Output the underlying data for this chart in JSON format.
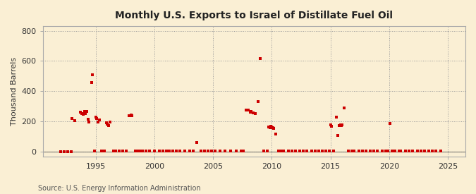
{
  "title": "Monthly U.S. Exports to Israel of Distillate Fuel Oil",
  "ylabel": "Thousand Barrels",
  "source": "Source: U.S. Energy Information Administration",
  "background_color": "#faefd4",
  "plot_background_color": "#faefd4",
  "marker_color": "#cc0000",
  "marker_size": 9,
  "xlim": [
    1990.5,
    2026.5
  ],
  "ylim": [
    -30,
    830
  ],
  "yticks": [
    0,
    200,
    400,
    600,
    800
  ],
  "xticks": [
    1995,
    2000,
    2005,
    2010,
    2015,
    2020,
    2025
  ],
  "data": [
    [
      1992.0,
      0
    ],
    [
      1992.3,
      0
    ],
    [
      1992.6,
      0
    ],
    [
      1992.9,
      0
    ],
    [
      1993.0,
      220
    ],
    [
      1993.2,
      205
    ],
    [
      1993.7,
      260
    ],
    [
      1993.85,
      255
    ],
    [
      1993.95,
      250
    ],
    [
      1994.05,
      265
    ],
    [
      1994.15,
      255
    ],
    [
      1994.25,
      265
    ],
    [
      1994.35,
      215
    ],
    [
      1994.45,
      195
    ],
    [
      1994.65,
      460
    ],
    [
      1994.75,
      510
    ],
    [
      1994.9,
      5
    ],
    [
      1995.0,
      230
    ],
    [
      1995.1,
      220
    ],
    [
      1995.2,
      195
    ],
    [
      1995.3,
      210
    ],
    [
      1995.5,
      5
    ],
    [
      1995.75,
      5
    ],
    [
      1995.9,
      190
    ],
    [
      1996.0,
      185
    ],
    [
      1996.1,
      175
    ],
    [
      1996.2,
      195
    ],
    [
      1996.5,
      5
    ],
    [
      1996.7,
      5
    ],
    [
      1997.0,
      5
    ],
    [
      1997.3,
      5
    ],
    [
      1997.6,
      5
    ],
    [
      1997.85,
      240
    ],
    [
      1998.0,
      245
    ],
    [
      1998.1,
      240
    ],
    [
      1998.4,
      5
    ],
    [
      1998.6,
      5
    ],
    [
      1998.8,
      5
    ],
    [
      1999.0,
      5
    ],
    [
      1999.3,
      5
    ],
    [
      1999.6,
      5
    ],
    [
      2000.0,
      5
    ],
    [
      2000.4,
      5
    ],
    [
      2000.7,
      5
    ],
    [
      2001.0,
      5
    ],
    [
      2001.3,
      5
    ],
    [
      2001.6,
      5
    ],
    [
      2001.9,
      5
    ],
    [
      2002.2,
      5
    ],
    [
      2002.6,
      5
    ],
    [
      2003.0,
      5
    ],
    [
      2003.3,
      5
    ],
    [
      2003.6,
      60
    ],
    [
      2004.0,
      5
    ],
    [
      2004.3,
      5
    ],
    [
      2004.6,
      5
    ],
    [
      2004.9,
      5
    ],
    [
      2005.2,
      5
    ],
    [
      2005.6,
      5
    ],
    [
      2006.0,
      5
    ],
    [
      2006.5,
      5
    ],
    [
      2007.0,
      5
    ],
    [
      2007.4,
      5
    ],
    [
      2007.6,
      5
    ],
    [
      2007.83,
      275
    ],
    [
      2008.0,
      278
    ],
    [
      2008.17,
      262
    ],
    [
      2008.25,
      267
    ],
    [
      2008.42,
      258
    ],
    [
      2008.58,
      252
    ],
    [
      2008.83,
      330
    ],
    [
      2009.0,
      615
    ],
    [
      2009.3,
      5
    ],
    [
      2009.6,
      5
    ],
    [
      2009.75,
      165
    ],
    [
      2009.85,
      158
    ],
    [
      2009.92,
      168
    ],
    [
      2010.0,
      163
    ],
    [
      2010.08,
      160
    ],
    [
      2010.17,
      155
    ],
    [
      2010.33,
      117
    ],
    [
      2010.58,
      5
    ],
    [
      2010.83,
      5
    ],
    [
      2011.0,
      5
    ],
    [
      2011.4,
      5
    ],
    [
      2011.7,
      5
    ],
    [
      2012.0,
      5
    ],
    [
      2012.4,
      5
    ],
    [
      2012.7,
      5
    ],
    [
      2013.0,
      5
    ],
    [
      2013.4,
      5
    ],
    [
      2013.7,
      5
    ],
    [
      2014.0,
      5
    ],
    [
      2014.3,
      5
    ],
    [
      2014.6,
      5
    ],
    [
      2014.9,
      5
    ],
    [
      2015.0,
      178
    ],
    [
      2015.1,
      168
    ],
    [
      2015.25,
      5
    ],
    [
      2015.5,
      228
    ],
    [
      2015.6,
      107
    ],
    [
      2015.75,
      173
    ],
    [
      2015.85,
      177
    ],
    [
      2015.92,
      172
    ],
    [
      2016.0,
      177
    ],
    [
      2016.17,
      288
    ],
    [
      2016.5,
      5
    ],
    [
      2016.83,
      5
    ],
    [
      2017.0,
      5
    ],
    [
      2017.4,
      5
    ],
    [
      2017.7,
      5
    ],
    [
      2018.0,
      5
    ],
    [
      2018.4,
      5
    ],
    [
      2018.7,
      5
    ],
    [
      2019.0,
      5
    ],
    [
      2019.4,
      5
    ],
    [
      2019.7,
      5
    ],
    [
      2019.92,
      5
    ],
    [
      2020.08,
      188
    ],
    [
      2020.25,
      5
    ],
    [
      2020.5,
      5
    ],
    [
      2020.83,
      5
    ],
    [
      2021.0,
      5
    ],
    [
      2021.4,
      5
    ],
    [
      2021.7,
      5
    ],
    [
      2022.0,
      5
    ],
    [
      2022.4,
      5
    ],
    [
      2022.7,
      5
    ],
    [
      2023.0,
      5
    ],
    [
      2023.4,
      5
    ],
    [
      2023.7,
      5
    ],
    [
      2024.0,
      5
    ],
    [
      2024.4,
      5
    ]
  ]
}
